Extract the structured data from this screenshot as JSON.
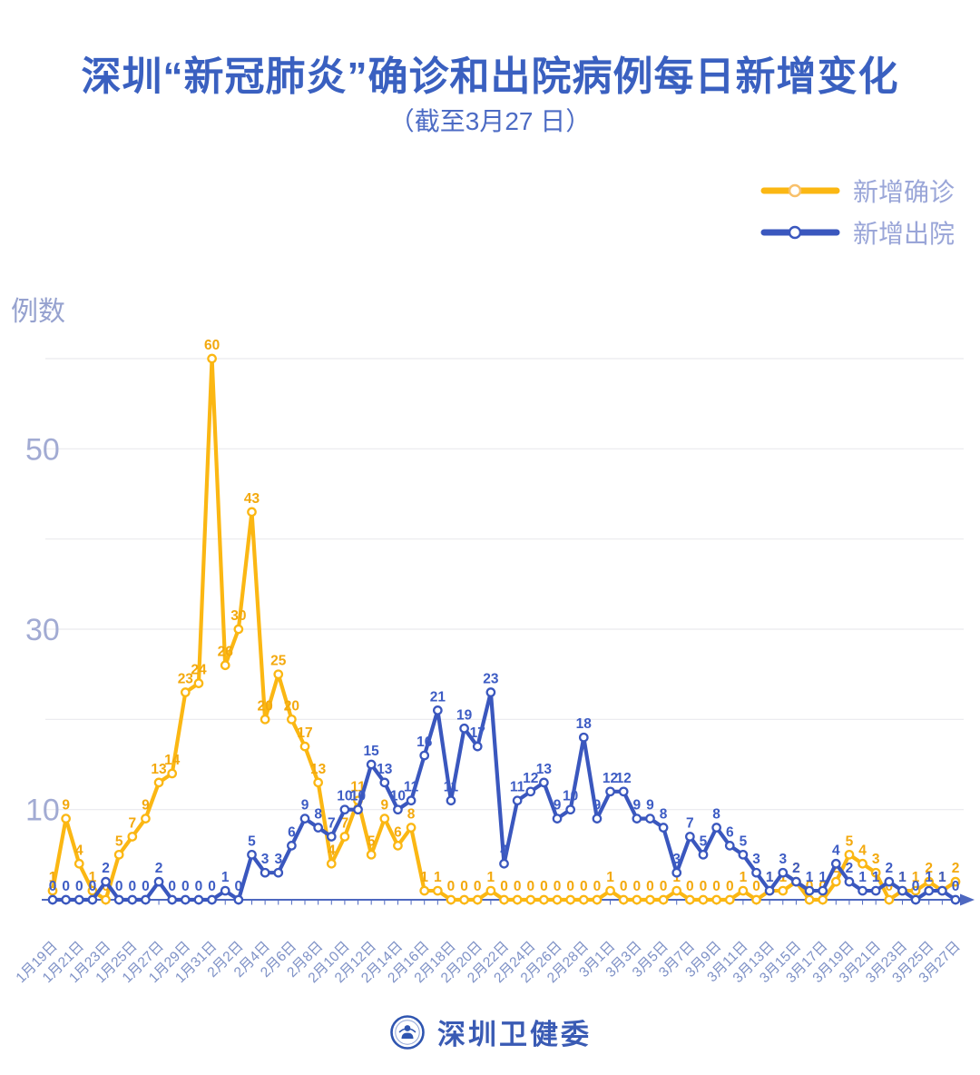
{
  "header": {
    "title": "深圳“新冠肺炎”确诊和出院病例每日新增变化",
    "subtitle": "（截至3月27 日）"
  },
  "legend": {
    "items": [
      {
        "label": "新增确诊",
        "color": "#FBB713"
      },
      {
        "label": "新增出院",
        "color": "#3A57BE"
      }
    ]
  },
  "y_axis": {
    "label": "例数",
    "tick_labels": [
      "10",
      "30",
      "50"
    ],
    "tick_values": [
      10,
      30,
      50
    ],
    "grid_values": [
      10,
      20,
      30,
      40,
      50,
      60
    ]
  },
  "footer": {
    "org": "深圳卫健委"
  },
  "chart_data": {
    "type": "line",
    "title": "深圳“新冠肺炎”确诊和出院病例每日新增变化（截至3月27 日）",
    "ylabel": "例数",
    "ylim": [
      0,
      62
    ],
    "grid": "horizontal",
    "legend_position": "top-right",
    "x_tick_step": 2,
    "x": [
      "1月19日",
      "1月20日",
      "1月21日",
      "1月22日",
      "1月23日",
      "1月24日",
      "1月25日",
      "1月26日",
      "1月27日",
      "1月28日",
      "1月29日",
      "1月30日",
      "1月31日",
      "2月1日",
      "2月2日",
      "2月3日",
      "2月4日",
      "2月5日",
      "2月6日",
      "2月7日",
      "2月8日",
      "2月9日",
      "2月10日",
      "2月11日",
      "2月12日",
      "2月13日",
      "2月14日",
      "2月15日",
      "2月16日",
      "2月17日",
      "2月18日",
      "2月19日",
      "2月20日",
      "2月21日",
      "2月22日",
      "2月23日",
      "2月24日",
      "2月25日",
      "2月26日",
      "2月27日",
      "2月28日",
      "2月29日",
      "3月1日",
      "3月2日",
      "3月3日",
      "3月4日",
      "3月5日",
      "3月6日",
      "3月7日",
      "3月8日",
      "3月9日",
      "3月10日",
      "3月11日",
      "3月12日",
      "3月13日",
      "3月14日",
      "3月15日",
      "3月16日",
      "3月17日",
      "3月18日",
      "3月19日",
      "3月20日",
      "3月21日",
      "3月22日",
      "3月23日",
      "3月24日",
      "3月25日",
      "3月26日",
      "3月27日"
    ],
    "series": [
      {
        "name": "新增确诊",
        "color": "#FBB713",
        "label_color": "#F3A90E",
        "values": [
          1,
          9,
          4,
          1,
          0,
          5,
          7,
          9,
          13,
          14,
          23,
          24,
          60,
          26,
          30,
          43,
          20,
          25,
          20,
          17,
          13,
          4,
          7,
          11,
          5,
          9,
          6,
          8,
          1,
          1,
          0,
          0,
          0,
          1,
          0,
          0,
          0,
          0,
          0,
          0,
          0,
          0,
          1,
          0,
          0,
          0,
          0,
          1,
          0,
          0,
          0,
          0,
          1,
          0,
          1,
          1,
          2,
          0,
          0,
          2,
          5,
          4,
          3,
          0,
          1,
          1,
          2,
          1,
          2
        ]
      },
      {
        "name": "新增出院",
        "color": "#3A57BE",
        "label_color": "#3D5CC4",
        "values": [
          0,
          0,
          0,
          0,
          2,
          0,
          0,
          0,
          2,
          0,
          0,
          0,
          0,
          1,
          0,
          5,
          3,
          3,
          6,
          9,
          8,
          7,
          10,
          10,
          15,
          13,
          10,
          11,
          16,
          21,
          11,
          19,
          17,
          23,
          4,
          11,
          12,
          13,
          9,
          10,
          18,
          9,
          12,
          12,
          9,
          9,
          8,
          3,
          7,
          5,
          8,
          6,
          5,
          3,
          1,
          3,
          2,
          1,
          1,
          4,
          2,
          1,
          1,
          2,
          1,
          0,
          1,
          1,
          0
        ]
      }
    ]
  }
}
